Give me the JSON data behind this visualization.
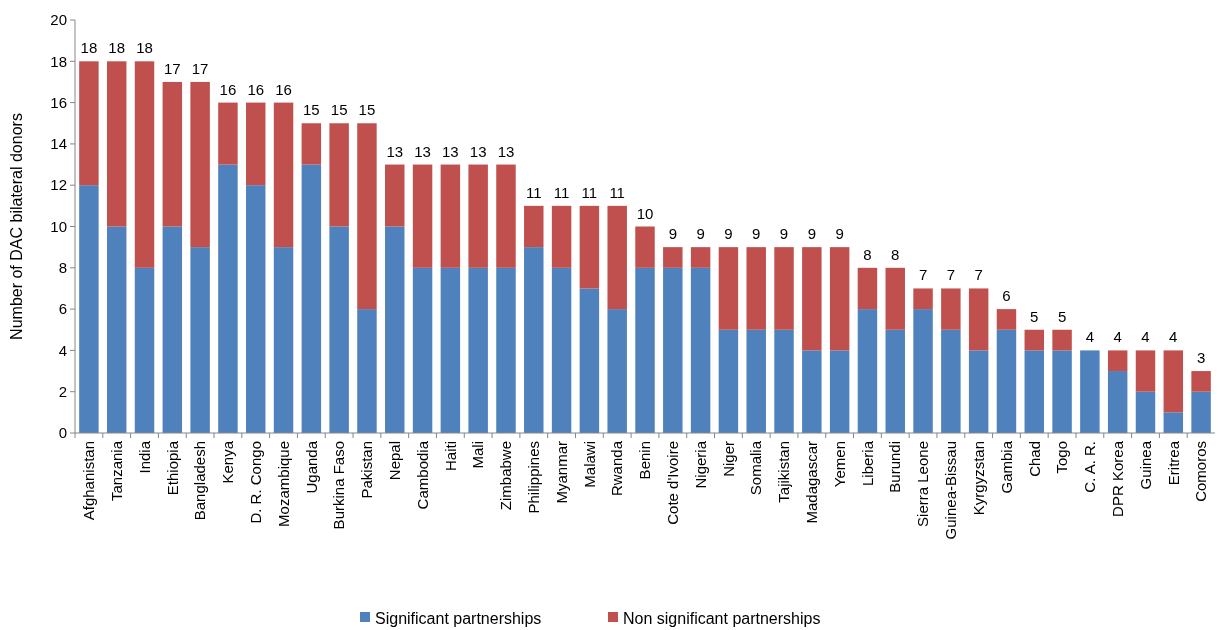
{
  "chart_data": {
    "type": "bar",
    "stacked": true,
    "ylabel": "Number of DAC bilateral donors",
    "categories": [
      "Afghanistan",
      "Tanzania",
      "India",
      "Ethiopia",
      "Bangladesh",
      "Kenya",
      "D. R. Congo",
      "Mozambique",
      "Uganda",
      "Burkina Faso",
      "Pakistan",
      "Nepal",
      "Cambodia",
      "Haiti",
      "Mali",
      "Zimbabwe",
      "Philippines",
      "Myanmar",
      "Malawi",
      "Rwanda",
      "Benin",
      "Cote d'Ivoire",
      "Nigeria",
      "Niger",
      "Somalia",
      "Tajikistan",
      "Madagascar",
      "Yemen",
      "Liberia",
      "Burundi",
      "Sierra Leone",
      "Guinea-Bissau",
      "Kyrgyzstan",
      "Gambia",
      "Chad",
      "Togo",
      "C. A. R.",
      "DPR Korea",
      "Guinea",
      "Eritrea",
      "Comoros"
    ],
    "series": [
      {
        "name": "Significant partnerships",
        "color": "#4f81bd",
        "values": [
          12,
          10,
          8,
          10,
          9,
          13,
          12,
          9,
          13,
          10,
          6,
          10,
          8,
          8,
          8,
          8,
          9,
          8,
          7,
          6,
          8,
          8,
          8,
          5,
          5,
          5,
          4,
          4,
          6,
          5,
          6,
          5,
          4,
          5,
          4,
          4,
          4,
          3,
          2,
          1,
          2
        ]
      },
      {
        "name": "Non significant partnerships",
        "color": "#c0504d",
        "values": [
          6,
          8,
          10,
          7,
          8,
          3,
          4,
          7,
          2,
          5,
          9,
          3,
          5,
          5,
          5,
          5,
          2,
          3,
          4,
          5,
          2,
          1,
          1,
          4,
          4,
          4,
          5,
          5,
          2,
          3,
          1,
          2,
          3,
          1,
          1,
          1,
          0,
          1,
          2,
          3,
          1
        ]
      }
    ],
    "totals": [
      "18",
      "18",
      "18",
      "17",
      "17",
      "16",
      "16",
      "16",
      "15",
      "15",
      "15",
      "13",
      "13",
      "13",
      "13",
      "13",
      "11",
      "11",
      "11",
      "11",
      "10",
      "9",
      "9",
      "9",
      "9",
      "9",
      "9",
      "9",
      "8",
      "8",
      "7",
      "7",
      "7",
      "6",
      "5",
      "5",
      "4",
      "4",
      "4",
      "4",
      "3"
    ],
    "ylim": [
      0,
      20
    ],
    "yticks": [
      0,
      2,
      4,
      6,
      8,
      10,
      12,
      14,
      16,
      18,
      20
    ],
    "legend": "bottom",
    "grid": false
  }
}
